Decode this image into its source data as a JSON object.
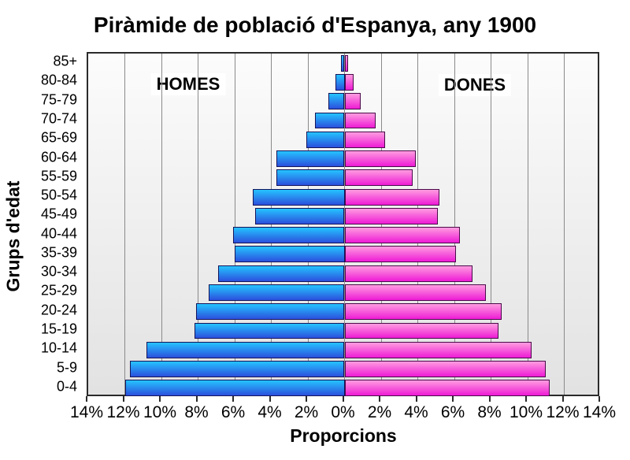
{
  "title": "Piràmide de població d'Espanya, any 1900",
  "labels": {
    "left_group": "HOMES",
    "right_group": "DONES"
  },
  "axes": {
    "x_title": "Proporcions",
    "y_title": "Grups d'edat"
  },
  "chart_data": {
    "type": "bar",
    "subtype": "population-pyramid",
    "title": "Piràmide de població d'Espanya, any 1900",
    "xlabel": "Proporcions",
    "ylabel": "Grups d'edat",
    "categories_top_to_bottom": [
      "85+",
      "80-84",
      "75-79",
      "70-74",
      "65-69",
      "60-64",
      "55-59",
      "50-54",
      "45-49",
      "40-44",
      "35-39",
      "30-34",
      "25-29",
      "20-24",
      "15-19",
      "10-14",
      "5-9",
      "0-4"
    ],
    "series": [
      {
        "name": "HOMES",
        "side": "left",
        "values_pct": [
          0.2,
          0.5,
          0.9,
          1.6,
          2.1,
          3.7,
          3.7,
          5.0,
          4.9,
          6.1,
          6.0,
          6.9,
          7.4,
          8.1,
          8.2,
          10.8,
          11.7,
          12.0
        ]
      },
      {
        "name": "DONES",
        "side": "right",
        "values_pct": [
          0.2,
          0.5,
          0.9,
          1.7,
          2.2,
          3.9,
          3.7,
          5.2,
          5.1,
          6.3,
          6.1,
          7.0,
          7.7,
          8.6,
          8.4,
          10.2,
          11.0,
          11.2
        ]
      }
    ],
    "x_tick_labels": [
      "14%",
      "12%",
      "10%",
      "8%",
      "6%",
      "4%",
      "2%",
      "0%",
      "2%",
      "4%",
      "6%",
      "8%",
      "10%",
      "12%",
      "14%"
    ],
    "x_max_each_side_pct": 14,
    "x_tick_step_pct": 2,
    "grid": "vertical-every-2pct",
    "legend_position": "inside-top as group labels",
    "colors": {
      "homes_gradient_top": "#25c3ff",
      "homes_gradient_bottom": "#2b50dd",
      "homes_border": "#14145a",
      "dones_gradient_top": "#ff9ce0",
      "dones_gradient_bottom": "#ee1bd5",
      "dones_border": "#4a0a4a",
      "plot_bg_top": "#fcfcfc",
      "plot_bg_bottom": "#e2e2e2",
      "gridline": "#8a8a8a",
      "frame": "#2b2b2b",
      "text": "#000000"
    }
  }
}
